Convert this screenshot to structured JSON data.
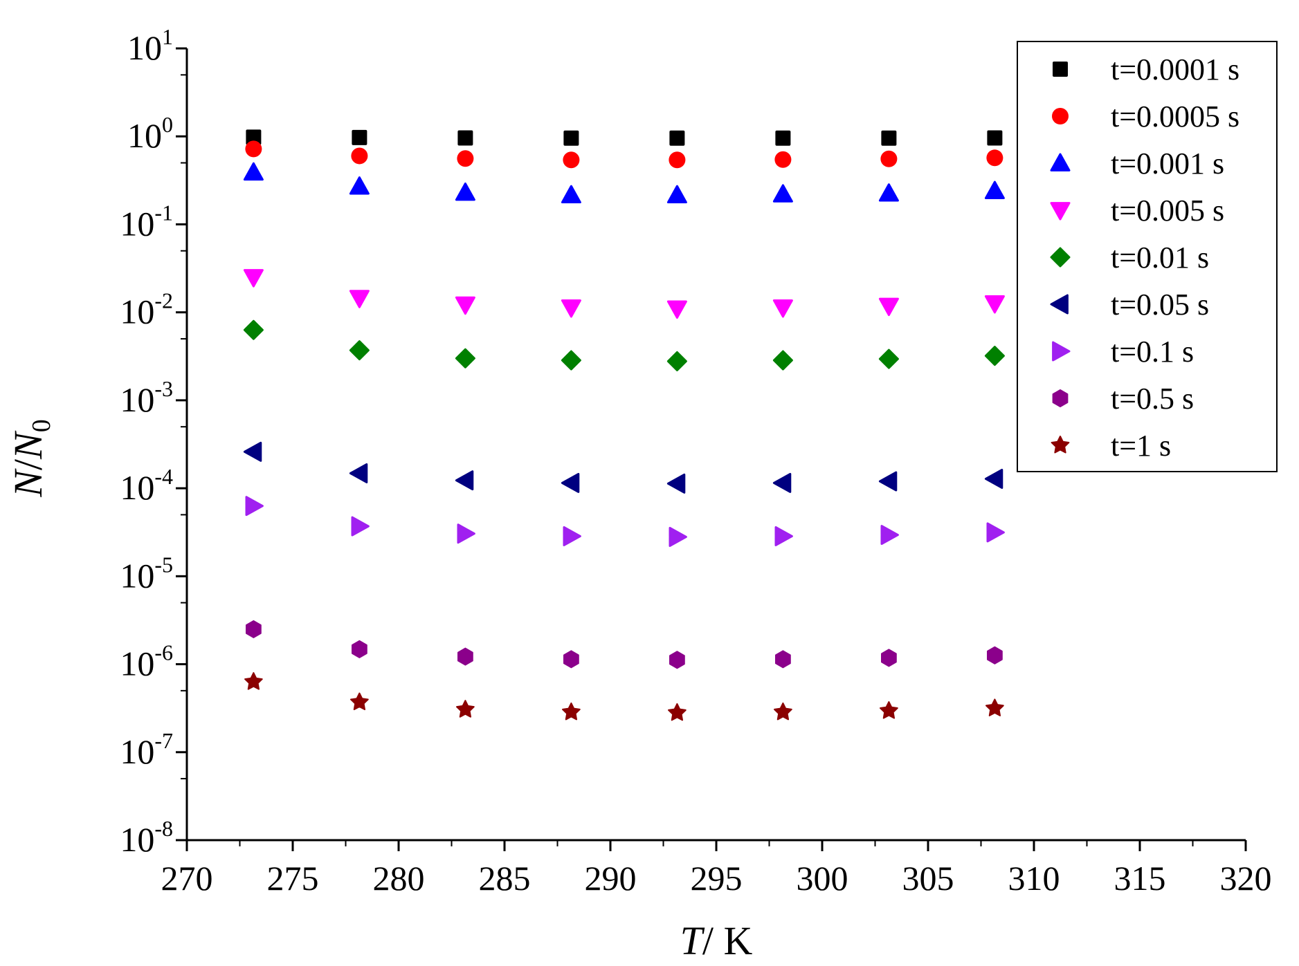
{
  "chart_data": {
    "type": "scatter",
    "x": [
      273.15,
      278.15,
      283.15,
      288.15,
      293.15,
      298.15,
      303.15,
      308.15
    ],
    "xlabel": {
      "italic": "T",
      "rest": "/ K"
    },
    "ylabel": {
      "italic_n": "N",
      "slash": "/",
      "italic_n0": "N",
      "sub": "0"
    },
    "xlim": [
      270,
      320
    ],
    "ylim": [
      1e-08,
      10
    ],
    "yscale": "log",
    "x_ticks": [
      "270",
      "275",
      "280",
      "285",
      "290",
      "295",
      "300",
      "305",
      "310",
      "315",
      "320"
    ],
    "y_ticks": [
      {
        "base": "10",
        "exp": "-8"
      },
      {
        "base": "10",
        "exp": "-7"
      },
      {
        "base": "10",
        "exp": "-6"
      },
      {
        "base": "10",
        "exp": "-5"
      },
      {
        "base": "10",
        "exp": "-4"
      },
      {
        "base": "10",
        "exp": "-3"
      },
      {
        "base": "10",
        "exp": "-2"
      },
      {
        "base": "10",
        "exp": "-1"
      },
      {
        "base": "10",
        "exp": "0"
      },
      {
        "base": "10",
        "exp": "1"
      }
    ],
    "grid": false,
    "legend_position": "top-right",
    "series": [
      {
        "name": "t=0.0001 s",
        "marker": "square",
        "color": "#000000",
        "values": [
          0.98,
          0.97,
          0.96,
          0.955,
          0.955,
          0.955,
          0.955,
          0.96
        ]
      },
      {
        "name": "t=0.0005 s",
        "marker": "circle",
        "color": "#ff0000",
        "values": [
          0.72,
          0.6,
          0.56,
          0.54,
          0.54,
          0.545,
          0.555,
          0.57
        ]
      },
      {
        "name": "t=0.001 s",
        "marker": "triangle-up",
        "color": "#0000ff",
        "values": [
          0.39,
          0.27,
          0.23,
          0.215,
          0.215,
          0.22,
          0.225,
          0.24
        ]
      },
      {
        "name": "t=0.005 s",
        "marker": "triangle-down",
        "color": "#ff00ff",
        "values": [
          0.025,
          0.0145,
          0.0122,
          0.0113,
          0.011,
          0.0113,
          0.0118,
          0.0126
        ]
      },
      {
        "name": "t=0.01 s",
        "marker": "diamond",
        "color": "#008000",
        "values": [
          0.0063,
          0.0037,
          0.003,
          0.00285,
          0.00278,
          0.00285,
          0.00295,
          0.0032
        ]
      },
      {
        "name": "t=0.05 s",
        "marker": "triangle-left",
        "color": "#000080",
        "values": [
          0.00026,
          0.000148,
          0.000123,
          0.000115,
          0.000113,
          0.000115,
          0.00012,
          0.000128
        ]
      },
      {
        "name": "t=0.1 s",
        "marker": "triangle-right",
        "color": "#a020f0",
        "values": [
          6.3e-05,
          3.7e-05,
          3.05e-05,
          2.85e-05,
          2.8e-05,
          2.85e-05,
          2.95e-05,
          3.15e-05
        ]
      },
      {
        "name": "t=0.5 s",
        "marker": "hexagon",
        "color": "#8b008b",
        "values": [
          2.5e-06,
          1.48e-06,
          1.22e-06,
          1.14e-06,
          1.12e-06,
          1.14e-06,
          1.18e-06,
          1.26e-06
        ]
      },
      {
        "name": "t=1 s",
        "marker": "star",
        "color": "#8b0000",
        "values": [
          6.3e-07,
          3.7e-07,
          3.05e-07,
          2.85e-07,
          2.8e-07,
          2.85e-07,
          2.95e-07,
          3.15e-07
        ]
      }
    ]
  }
}
